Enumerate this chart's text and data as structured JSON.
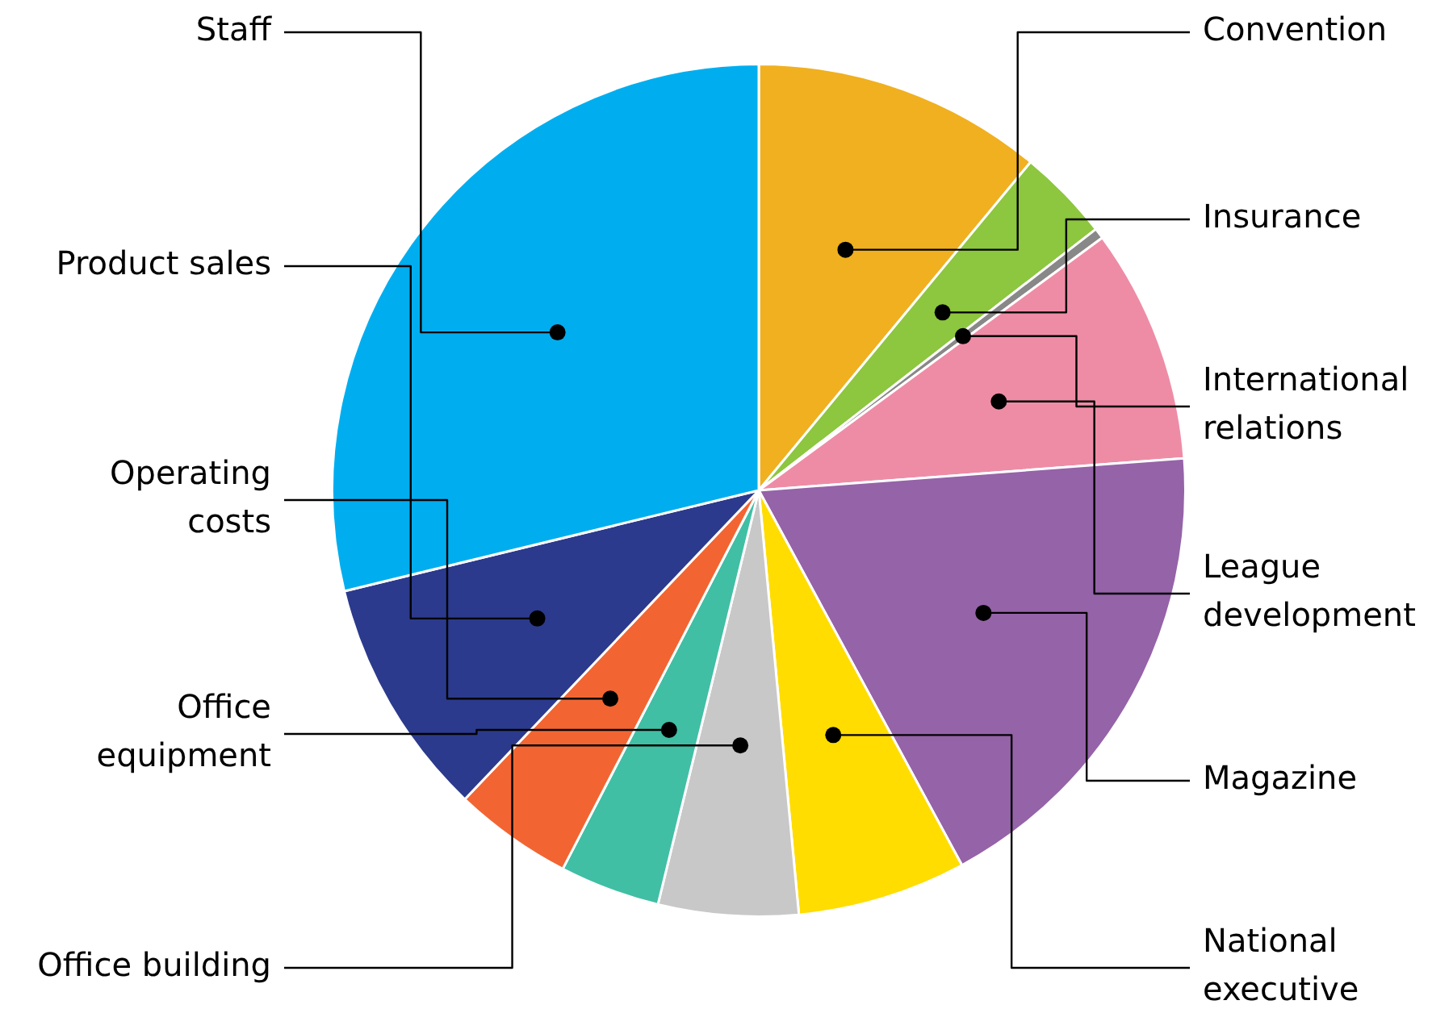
{
  "chart_data": {
    "type": "pie",
    "categories": [
      "Convention",
      "Insurance",
      "International\nrelations",
      "League\ndevelopment",
      "Magazine",
      "National\nexecutive",
      "Office building",
      "Office\nequipment",
      "Operating\ncosts",
      "Product sales",
      "Staff"
    ],
    "values": [
      11,
      3.5,
      0.4,
      8.9,
      18.3,
      6.4,
      5.3,
      3.8,
      4.5,
      9.1,
      28.8
    ],
    "colors": [
      "#f0b020",
      "#8dc63f",
      "#888888",
      "#ee8ca6",
      "#9563a8",
      "#ffdd00",
      "#c8c8c8",
      "#40bfa5",
      "#f26532",
      "#2b3a8c",
      "#00aeef"
    ],
    "legend": false
  }
}
